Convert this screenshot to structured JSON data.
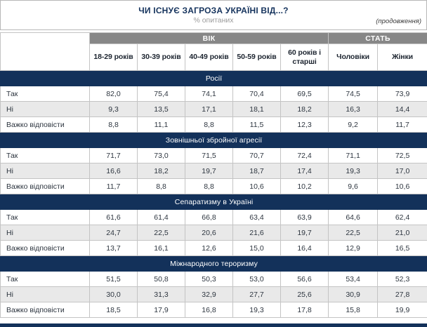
{
  "header": {
    "title": "ЧИ ІСНУЄ ЗАГРОЗА УКРАЇНІ ВІД...?",
    "subtitle": "% опитаних",
    "continuation": "(продовження)"
  },
  "table": {
    "column_groups": [
      {
        "label": "ВІК",
        "span": 5
      },
      {
        "label": "СТАТЬ",
        "span": 2
      }
    ],
    "columns": [
      "18-29 років",
      "30-39 років",
      "40-49 років",
      "50-59 років",
      "60 років і старші",
      "Чоловіки",
      "Жінки"
    ],
    "row_labels": [
      "Так",
      "Ні",
      "Важко відповісти"
    ],
    "sections": [
      {
        "title": "Росії",
        "rows": [
          [
            "82,0",
            "75,4",
            "74,1",
            "70,4",
            "69,5",
            "74,5",
            "73,9"
          ],
          [
            "9,3",
            "13,5",
            "17,1",
            "18,1",
            "18,2",
            "16,3",
            "14,4"
          ],
          [
            "8,8",
            "11,1",
            "8,8",
            "11,5",
            "12,3",
            "9,2",
            "11,7"
          ]
        ]
      },
      {
        "title": "Зовнішньої збройної агресії",
        "rows": [
          [
            "71,7",
            "73,0",
            "71,5",
            "70,7",
            "72,4",
            "71,1",
            "72,5"
          ],
          [
            "16,6",
            "18,2",
            "19,7",
            "18,7",
            "17,4",
            "19,3",
            "17,0"
          ],
          [
            "11,7",
            "8,8",
            "8,8",
            "10,6",
            "10,2",
            "9,6",
            "10,6"
          ]
        ]
      },
      {
        "title": "Сепаратизму в Україні",
        "rows": [
          [
            "61,6",
            "61,4",
            "66,8",
            "63,4",
            "63,9",
            "64,6",
            "62,4"
          ],
          [
            "24,7",
            "22,5",
            "20,6",
            "21,6",
            "19,7",
            "22,5",
            "21,0"
          ],
          [
            "13,7",
            "16,1",
            "12,6",
            "15,0",
            "16,4",
            "12,9",
            "16,5"
          ]
        ]
      },
      {
        "title": "Міжнародного тероризму",
        "rows": [
          [
            "51,5",
            "50,8",
            "50,3",
            "53,0",
            "56,6",
            "53,4",
            "52,3"
          ],
          [
            "30,0",
            "31,3",
            "32,9",
            "27,7",
            "25,6",
            "30,9",
            "27,8"
          ],
          [
            "18,5",
            "17,9",
            "16,8",
            "19,3",
            "17,8",
            "15,8",
            "19,9"
          ]
        ]
      }
    ]
  },
  "chart_data": {
    "type": "table",
    "title": "ЧИ ІСНУЄ ЗАГРОЗА УКРАЇНІ ВІД...?",
    "subtitle": "% опитаних",
    "categories": [
      "18-29 років",
      "30-39 років",
      "40-49 років",
      "50-59 років",
      "60 років і старші",
      "Чоловіки",
      "Жінки"
    ],
    "series": [
      {
        "name": "Росії — Так",
        "values": [
          82.0,
          75.4,
          74.1,
          70.4,
          69.5,
          74.5,
          73.9
        ]
      },
      {
        "name": "Росії — Ні",
        "values": [
          9.3,
          13.5,
          17.1,
          18.1,
          18.2,
          16.3,
          14.4
        ]
      },
      {
        "name": "Росії — Важко відповісти",
        "values": [
          8.8,
          11.1,
          8.8,
          11.5,
          12.3,
          9.2,
          11.7
        ]
      },
      {
        "name": "Зовнішньої збройної агресії — Так",
        "values": [
          71.7,
          73.0,
          71.5,
          70.7,
          72.4,
          71.1,
          72.5
        ]
      },
      {
        "name": "Зовнішньої збройної агресії — Ні",
        "values": [
          16.6,
          18.2,
          19.7,
          18.7,
          17.4,
          19.3,
          17.0
        ]
      },
      {
        "name": "Зовнішньої збройної агресії — Важко відповісти",
        "values": [
          11.7,
          8.8,
          8.8,
          10.6,
          10.2,
          9.6,
          10.6
        ]
      },
      {
        "name": "Сепаратизму в Україні — Так",
        "values": [
          61.6,
          61.4,
          66.8,
          63.4,
          63.9,
          64.6,
          62.4
        ]
      },
      {
        "name": "Сепаратизму в Україні — Ні",
        "values": [
          24.7,
          22.5,
          20.6,
          21.6,
          19.7,
          22.5,
          21.0
        ]
      },
      {
        "name": "Сепаратизму в Україні — Важко відповісти",
        "values": [
          13.7,
          16.1,
          12.6,
          15.0,
          16.4,
          12.9,
          16.5
        ]
      },
      {
        "name": "Міжнародного тероризму — Так",
        "values": [
          51.5,
          50.8,
          50.3,
          53.0,
          56.6,
          53.4,
          52.3
        ]
      },
      {
        "name": "Міжнародного тероризму — Ні",
        "values": [
          30.0,
          31.3,
          32.9,
          27.7,
          25.6,
          30.9,
          27.8
        ]
      },
      {
        "name": "Міжнародного тероризму — Важко відповісти",
        "values": [
          18.5,
          17.9,
          16.8,
          19.3,
          17.8,
          15.8,
          19.9
        ]
      }
    ]
  },
  "colors": {
    "navy_band": "#13315a",
    "gray_band": "#878787",
    "alt_row": "#e9e9e9",
    "border": "#c4c4c4"
  }
}
